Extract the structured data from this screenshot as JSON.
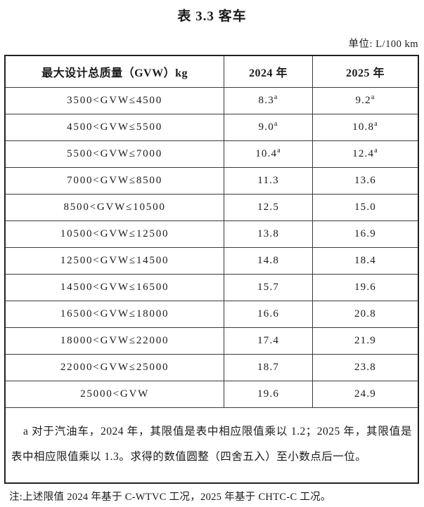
{
  "page": {
    "title": "表 3.3 客车",
    "unit_label": "单位: L/100 km",
    "note": "注:上述限值 2024 年基于 C-WTVC 工况，2025 年基于 CHTC-C 工况。"
  },
  "table": {
    "columns": [
      "最大设计总质量（GVW）kg",
      "2024 年",
      "2025 年"
    ],
    "rows": [
      {
        "range": "3500<GVW≤4500",
        "y2024": "8.3",
        "y2024_sup": "a",
        "y2025": "9.2",
        "y2025_sup": "a"
      },
      {
        "range": "4500<GVW≤5500",
        "y2024": "9.0",
        "y2024_sup": "a",
        "y2025": "10.8",
        "y2025_sup": "a"
      },
      {
        "range": "5500<GVW≤7000",
        "y2024": "10.4",
        "y2024_sup": "a",
        "y2025": "12.4",
        "y2025_sup": "a"
      },
      {
        "range": "7000<GVW≤8500",
        "y2024": "11.3",
        "y2024_sup": "",
        "y2025": "13.6",
        "y2025_sup": ""
      },
      {
        "range": "8500<GVW≤10500",
        "y2024": "12.5",
        "y2024_sup": "",
        "y2025": "15.0",
        "y2025_sup": ""
      },
      {
        "range": "10500<GVW≤12500",
        "y2024": "13.8",
        "y2024_sup": "",
        "y2025": "16.9",
        "y2025_sup": ""
      },
      {
        "range": "12500<GVW≤14500",
        "y2024": "14.8",
        "y2024_sup": "",
        "y2025": "18.4",
        "y2025_sup": ""
      },
      {
        "range": "14500<GVW≤16500",
        "y2024": "15.7",
        "y2024_sup": "",
        "y2025": "19.6",
        "y2025_sup": ""
      },
      {
        "range": "16500<GVW≤18000",
        "y2024": "16.6",
        "y2024_sup": "",
        "y2025": "20.8",
        "y2025_sup": ""
      },
      {
        "range": "18000<GVW≤22000",
        "y2024": "17.4",
        "y2024_sup": "",
        "y2025": "21.9",
        "y2025_sup": ""
      },
      {
        "range": "22000<GVW≤25000",
        "y2024": "18.7",
        "y2024_sup": "",
        "y2025": "23.8",
        "y2025_sup": ""
      },
      {
        "range": "25000<GVW",
        "y2024": "19.6",
        "y2024_sup": "",
        "y2025": "24.9",
        "y2025_sup": ""
      }
    ],
    "footnote": "a 对于汽油车，2024 年，其限值是表中相应限值乘以 1.2；2025 年，其限值是表中相应限值乘以 1.3。求得的数值圆整（四舍五入）至小数点后一位。"
  }
}
